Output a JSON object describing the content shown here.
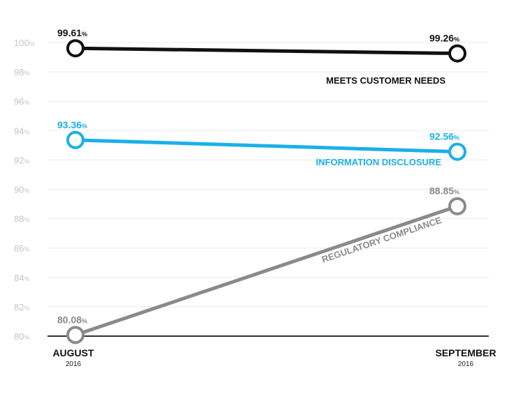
{
  "chart_data": {
    "type": "line",
    "categories": [
      "AUGUST",
      "SEPTEMBER"
    ],
    "category_sublabels": [
      "2016",
      "2016"
    ],
    "ylim": [
      80,
      100
    ],
    "yticks": [
      80,
      82,
      84,
      86,
      88,
      90,
      92,
      94,
      96,
      98,
      100
    ],
    "tick_suffix": "%",
    "value_suffix": "%",
    "grid": true,
    "series": [
      {
        "name": "MEETS CUSTOMER NEEDS",
        "values": [
          99.61,
          99.26
        ],
        "value_labels": [
          "99.61",
          "99.26"
        ],
        "color": "#111111"
      },
      {
        "name": "INFORMATION DISCLOSURE",
        "values": [
          93.36,
          92.56
        ],
        "value_labels": [
          "93.36",
          "92.56"
        ],
        "color": "#1ab0e8"
      },
      {
        "name": "REGULATORY COMPLIANCE",
        "values": [
          80.08,
          88.85
        ],
        "value_labels": [
          "80.08",
          "88.85"
        ],
        "color": "#8a8a8a"
      }
    ]
  }
}
